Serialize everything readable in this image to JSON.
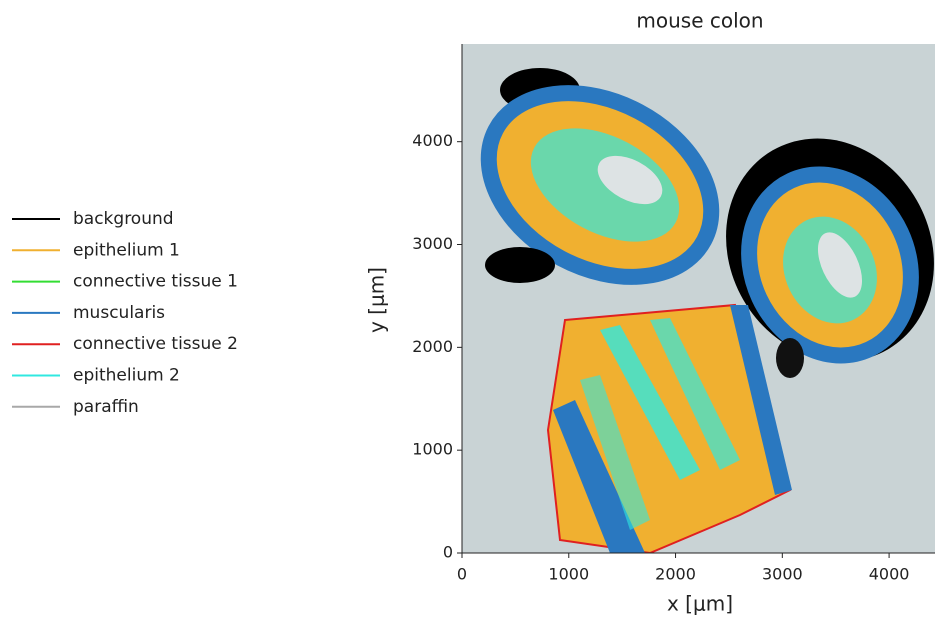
{
  "chart_data": {
    "type": "image",
    "title": "mouse colon",
    "xlabel": "x [μm]",
    "ylabel": "y [μm]",
    "xlim": [
      0,
      4430
    ],
    "ylim": [
      0,
      4950
    ],
    "xticks": [
      0,
      1000,
      2000,
      3000,
      4000
    ],
    "yticks": [
      0,
      1000,
      2000,
      3000,
      4000
    ],
    "classes": [
      {
        "name": "background",
        "color": "#000000"
      },
      {
        "name": "epithelium 1",
        "color": "#f0b030"
      },
      {
        "name": "connective tissue 1",
        "color": "#33dd33"
      },
      {
        "name": "muscularis",
        "color": "#2a78c0"
      },
      {
        "name": "connective tissue 2",
        "color": "#e02020"
      },
      {
        "name": "epithelium 2",
        "color": "#30e8e0"
      },
      {
        "name": "paraffin",
        "color": "#a8a8a8"
      }
    ]
  }
}
